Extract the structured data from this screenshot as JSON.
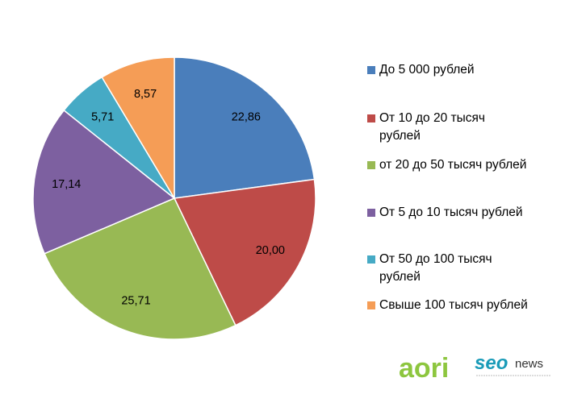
{
  "chart_data": {
    "type": "pie",
    "title": "",
    "slices": [
      {
        "label": "До 5 000 рублей",
        "value": 22.86,
        "value_label": "22,86",
        "color": "#4A7EBB"
      },
      {
        "label": "От 10 до 20 тысяч рублей",
        "value": 20.0,
        "value_label": "20,00",
        "color": "#BE4B48"
      },
      {
        "label": "от 20 до 50 тысяч рублей",
        "value": 25.71,
        "value_label": "25,71",
        "color": "#98B954"
      },
      {
        "label": "От 5 до 10 тысяч рублей",
        "value": 17.14,
        "value_label": "17,14",
        "color": "#7D60A0"
      },
      {
        "label": "От 50 до 100 тысяч рублей",
        "value": 5.71,
        "value_label": "5,71",
        "color": "#46AAC5"
      },
      {
        "label": "Свыше 100 тысяч рублей",
        "value": 8.57,
        "value_label": "8,57",
        "color": "#F59D56"
      }
    ],
    "start_angle": "12 o'clock",
    "direction": "clockwise",
    "legend_position": "right"
  },
  "legend": {
    "items": [
      {
        "lines": [
          "До 5 000 рублей"
        ],
        "color": "#4A7EBB"
      },
      {
        "lines": [
          "От 10 до 20 тысяч",
          "рублей"
        ],
        "color": "#BE4B48"
      },
      {
        "lines": [
          "от 20 до 50 тысяч рублей"
        ],
        "color": "#98B954"
      },
      {
        "lines": [
          "От 5 до 10 тысяч рублей"
        ],
        "color": "#7D60A0"
      },
      {
        "lines": [
          "От 50 до 100 тысяч",
          "рублей"
        ],
        "color": "#46AAC5"
      },
      {
        "lines": [
          "Свыше 100 тысяч рублей"
        ],
        "color": "#F59D56"
      }
    ]
  },
  "logo": {
    "aori_text": "aori",
    "seo_text": "seo",
    "news_text": "news",
    "aori_color": "#8DC63F",
    "seo_color": "#1A9BB8"
  }
}
